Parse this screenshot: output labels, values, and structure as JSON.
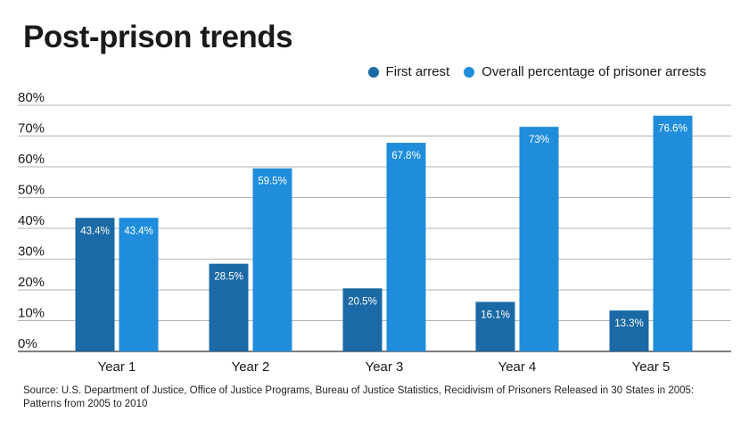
{
  "title": "Post-prison trends",
  "source": "Source: U.S. Department of Justice, Office of Justice Programs, Bureau of Justice Statistics, Recidivism of Prisoners Released in 30 States in 2005: Patterns from 2005 to 2010",
  "chart_data": {
    "type": "bar",
    "categories": [
      "Year 1",
      "Year 2",
      "Year 3",
      "Year 4",
      "Year 5"
    ],
    "series": [
      {
        "name": "First arrest",
        "color": "#1b6aa5",
        "values": [
          43.4,
          28.5,
          20.5,
          16.1,
          13.3
        ],
        "labels": [
          "43.4%",
          "28.5%",
          "20.5%",
          "16.1%",
          "13.3%"
        ]
      },
      {
        "name": "Overall percentage of prisoner arrests",
        "color": "#1f8ddb",
        "values": [
          43.4,
          59.5,
          67.8,
          73,
          76.6
        ],
        "labels": [
          "43.4%",
          "59.5%",
          "67.8%",
          "73%",
          "76.6%"
        ]
      }
    ],
    "yticks": [
      "0%",
      "10%",
      "20%",
      "30%",
      "40%",
      "50%",
      "60%",
      "70%",
      "80%"
    ],
    "ylim": [
      0,
      80
    ],
    "grid": true,
    "legend_position": "top-right"
  }
}
